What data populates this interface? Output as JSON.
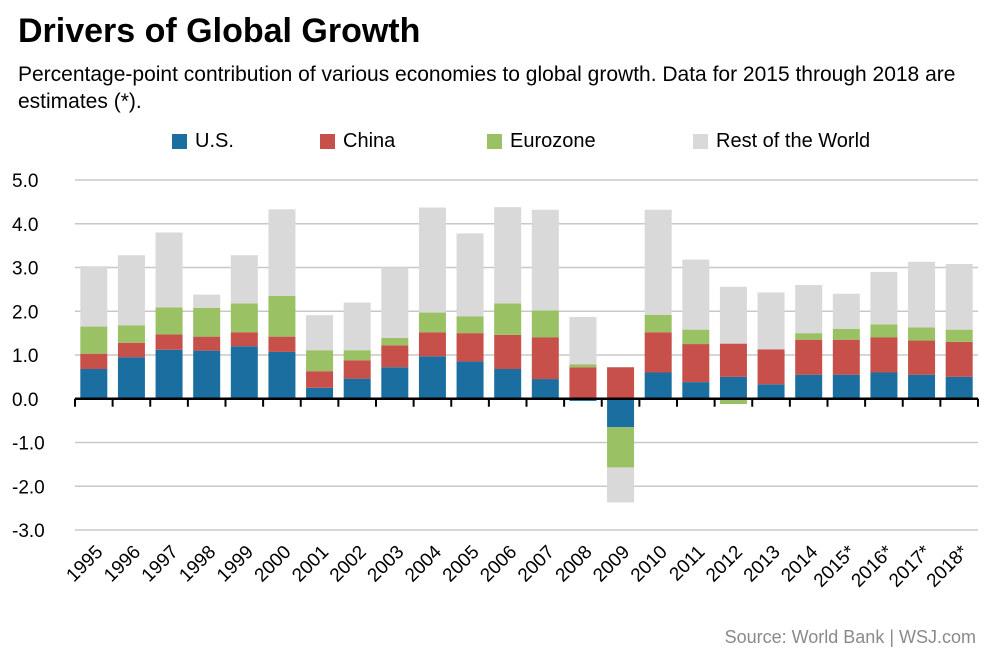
{
  "title": "Drivers of Global Growth",
  "subtitle": "Percentage-point contribution of various economies to global growth. Data for 2015 through 2018 are estimates (*).",
  "source": "Source: World Bank  |  WSJ.com",
  "chart_data": {
    "type": "bar",
    "stacked": true,
    "categories": [
      "1995",
      "1996",
      "1997",
      "1998",
      "1999",
      "2000",
      "2001",
      "2002",
      "2003",
      "2004",
      "2005",
      "2006",
      "2007",
      "2008",
      "2009",
      "2010",
      "2011",
      "2012",
      "2013",
      "2014",
      "2015*",
      "2016*",
      "2017*",
      "2018*"
    ],
    "ylim": [
      -3.0,
      5.0
    ],
    "yticks": [
      "5.0",
      "4.0",
      "3.0",
      "2.0",
      "1.0",
      "0.0",
      "-1.0",
      "-2.0",
      "-3.0"
    ],
    "ytick_values": [
      5,
      4,
      3,
      2,
      1,
      0,
      -1,
      -2,
      -3
    ],
    "grid": true,
    "legend_position": "top",
    "series": [
      {
        "name": "U.S.",
        "color": "#1a6fa0",
        "values": [
          0.68,
          0.95,
          1.12,
          1.1,
          1.2,
          1.07,
          0.25,
          0.46,
          0.72,
          0.97,
          0.85,
          0.68,
          0.45,
          -0.05,
          -0.65,
          0.6,
          0.38,
          0.5,
          0.33,
          0.55,
          0.55,
          0.6,
          0.55,
          0.5
        ]
      },
      {
        "name": "China",
        "color": "#c8504b",
        "values": [
          0.35,
          0.33,
          0.35,
          0.32,
          0.32,
          0.35,
          0.38,
          0.42,
          0.5,
          0.55,
          0.65,
          0.78,
          0.95,
          0.72,
          0.72,
          0.92,
          0.87,
          0.76,
          0.8,
          0.8,
          0.8,
          0.8,
          0.78,
          0.8
        ]
      },
      {
        "name": "Eurozone",
        "color": "#9ac163",
        "values": [
          0.62,
          0.4,
          0.62,
          0.66,
          0.66,
          0.93,
          0.48,
          0.23,
          0.17,
          0.45,
          0.38,
          0.72,
          0.62,
          0.07,
          -0.92,
          0.4,
          0.33,
          -0.12,
          -0.02,
          0.15,
          0.25,
          0.3,
          0.3,
          0.28
        ]
      },
      {
        "name": "Rest of the World",
        "color": "#d9d9d9",
        "values": [
          1.38,
          1.6,
          1.71,
          0.3,
          1.1,
          1.98,
          0.8,
          1.09,
          1.61,
          2.4,
          1.9,
          2.2,
          2.3,
          1.08,
          -0.8,
          2.4,
          1.6,
          1.3,
          1.3,
          1.1,
          0.8,
          1.2,
          1.5,
          1.5
        ]
      }
    ]
  }
}
